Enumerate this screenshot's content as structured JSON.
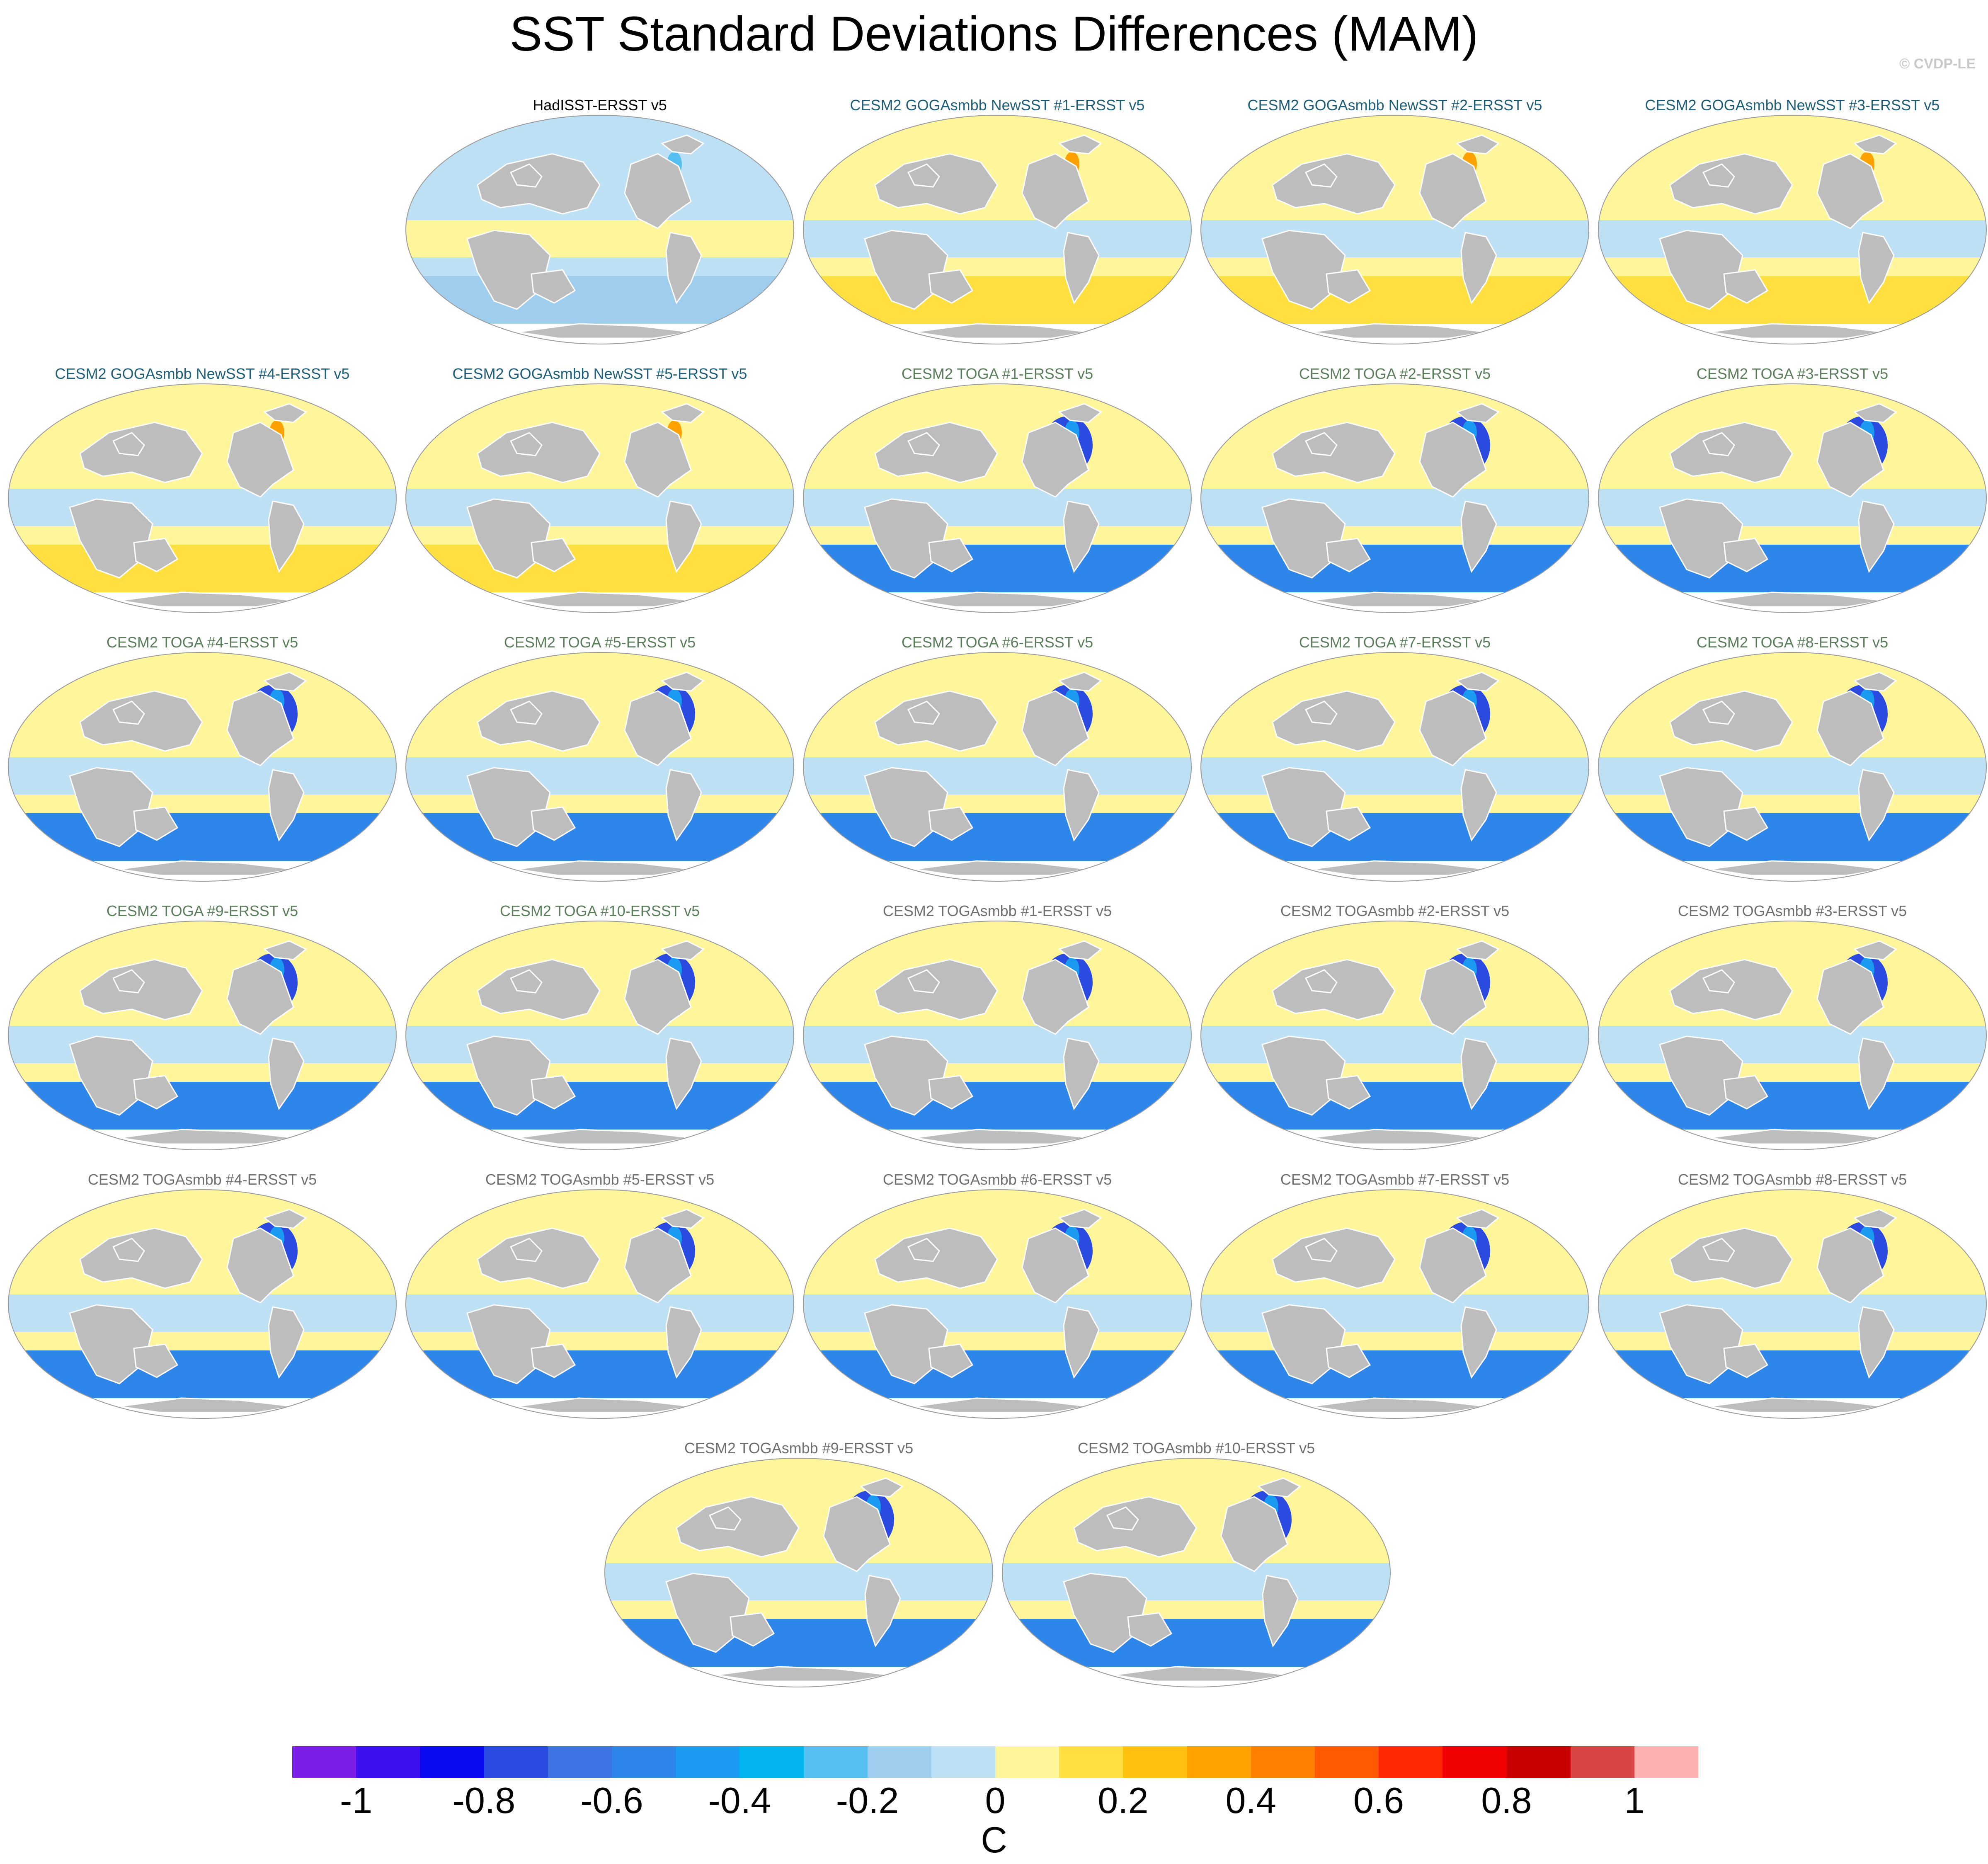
{
  "title": "SST Standard Deviations Differences (MAM)",
  "credit": "© CVDP-LE",
  "colorbar": {
    "units": "C",
    "colors": [
      "#7b1fe8",
      "#3d10f2",
      "#0a0af0",
      "#2b4be0",
      "#3d73e3",
      "#2f86ea",
      "#1a9af0",
      "#00b4f0",
      "#55c0f0",
      "#9ecdee",
      "#bde0f4",
      "#fff59a",
      "#ffe040",
      "#ffc010",
      "#ffa200",
      "#ff8000",
      "#ff5a00",
      "#ff2800",
      "#f00000",
      "#c80000",
      "#d94545",
      "#ffb0b0"
    ],
    "tick_labels": [
      "-1",
      "-0.8",
      "-0.6",
      "-0.4",
      "-0.2",
      "0",
      "0.2",
      "0.4",
      "0.6",
      "0.8",
      "1"
    ]
  },
  "panels": [
    {
      "title": "HadISST-ERSST v5",
      "group": "obs"
    },
    {
      "title": "CESM2 GOGAsmbb NewSST #1-ERSST v5",
      "group": "goga"
    },
    {
      "title": "CESM2 GOGAsmbb NewSST #2-ERSST v5",
      "group": "goga"
    },
    {
      "title": "CESM2 GOGAsmbb NewSST #3-ERSST v5",
      "group": "goga"
    },
    {
      "title": "CESM2 GOGAsmbb NewSST #4-ERSST v5",
      "group": "goga"
    },
    {
      "title": "CESM2 GOGAsmbb NewSST #5-ERSST v5",
      "group": "goga"
    },
    {
      "title": "CESM2 TOGA #1-ERSST v5",
      "group": "toga"
    },
    {
      "title": "CESM2 TOGA #2-ERSST v5",
      "group": "toga"
    },
    {
      "title": "CESM2 TOGA #3-ERSST v5",
      "group": "toga"
    },
    {
      "title": "CESM2 TOGA #4-ERSST v5",
      "group": "toga"
    },
    {
      "title": "CESM2 TOGA #5-ERSST v5",
      "group": "toga"
    },
    {
      "title": "CESM2 TOGA #6-ERSST v5",
      "group": "toga"
    },
    {
      "title": "CESM2 TOGA #7-ERSST v5",
      "group": "toga"
    },
    {
      "title": "CESM2 TOGA #8-ERSST v5",
      "group": "toga"
    },
    {
      "title": "CESM2 TOGA #9-ERSST v5",
      "group": "toga"
    },
    {
      "title": "CESM2 TOGA #10-ERSST v5",
      "group": "toga"
    },
    {
      "title": "CESM2 TOGAsmbb #1-ERSST v5",
      "group": "togasmbb"
    },
    {
      "title": "CESM2 TOGAsmbb #2-ERSST v5",
      "group": "togasmbb"
    },
    {
      "title": "CESM2 TOGAsmbb #3-ERSST v5",
      "group": "togasmbb"
    },
    {
      "title": "CESM2 TOGAsmbb #4-ERSST v5",
      "group": "togasmbb"
    },
    {
      "title": "CESM2 TOGAsmbb #5-ERSST v5",
      "group": "togasmbb"
    },
    {
      "title": "CESM2 TOGAsmbb #6-ERSST v5",
      "group": "togasmbb"
    },
    {
      "title": "CESM2 TOGAsmbb #7-ERSST v5",
      "group": "togasmbb"
    },
    {
      "title": "CESM2 TOGAsmbb #8-ERSST v5",
      "group": "togasmbb"
    },
    {
      "title": "CESM2 TOGAsmbb #9-ERSST v5",
      "group": "togasmbb"
    },
    {
      "title": "CESM2 TOGAsmbb #10-ERSST v5",
      "group": "togasmbb"
    }
  ],
  "title_colors": {
    "obs": "#000000",
    "goga": "#1f5f7a",
    "toga": "#5a7f5a",
    "togasmbb": "#707070"
  }
}
